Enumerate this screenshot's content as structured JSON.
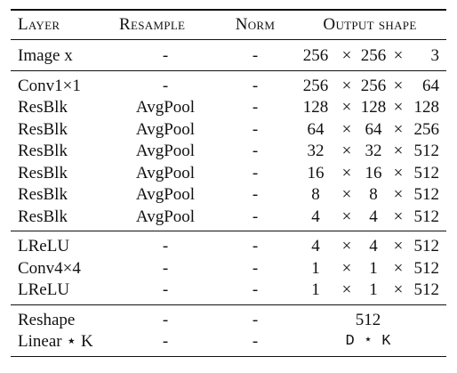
{
  "header": {
    "layer": "Layer",
    "resample": "Resample",
    "norm": "Norm",
    "output_shape": "Output shape"
  },
  "groups": [
    [
      {
        "layer": "Image x",
        "resample": "-",
        "norm": "-",
        "out": [
          "256",
          "256",
          "3"
        ]
      }
    ],
    [
      {
        "layer": "Conv1×1",
        "resample": "-",
        "norm": "-",
        "out": [
          "256",
          "256",
          "64"
        ]
      },
      {
        "layer": "ResBlk",
        "resample": "AvgPool",
        "norm": "-",
        "out": [
          "128",
          "128",
          "128"
        ]
      },
      {
        "layer": "ResBlk",
        "resample": "AvgPool",
        "norm": "-",
        "out": [
          "64",
          "64",
          "256"
        ]
      },
      {
        "layer": "ResBlk",
        "resample": "AvgPool",
        "norm": "-",
        "out": [
          "32",
          "32",
          "512"
        ]
      },
      {
        "layer": "ResBlk",
        "resample": "AvgPool",
        "norm": "-",
        "out": [
          "16",
          "16",
          "512"
        ]
      },
      {
        "layer": "ResBlk",
        "resample": "AvgPool",
        "norm": "-",
        "out": [
          "8",
          "8",
          "512"
        ]
      },
      {
        "layer": "ResBlk",
        "resample": "AvgPool",
        "norm": "-",
        "out": [
          "4",
          "4",
          "512"
        ]
      }
    ],
    [
      {
        "layer": "LReLU",
        "resample": "-",
        "norm": "-",
        "out": [
          "4",
          "4",
          "512"
        ]
      },
      {
        "layer": "Conv4×4",
        "resample": "-",
        "norm": "-",
        "out": [
          "1",
          "1",
          "512"
        ]
      },
      {
        "layer": "LReLU",
        "resample": "-",
        "norm": "-",
        "out": [
          "1",
          "1",
          "512"
        ]
      }
    ],
    [
      {
        "layer": "Reshape",
        "resample": "-",
        "norm": "-",
        "out_text": "512"
      },
      {
        "layer": "Linear ⋆ K",
        "resample": "-",
        "norm": "-",
        "out_text": "D ⋆ K"
      }
    ]
  ],
  "times_symbol": "×"
}
